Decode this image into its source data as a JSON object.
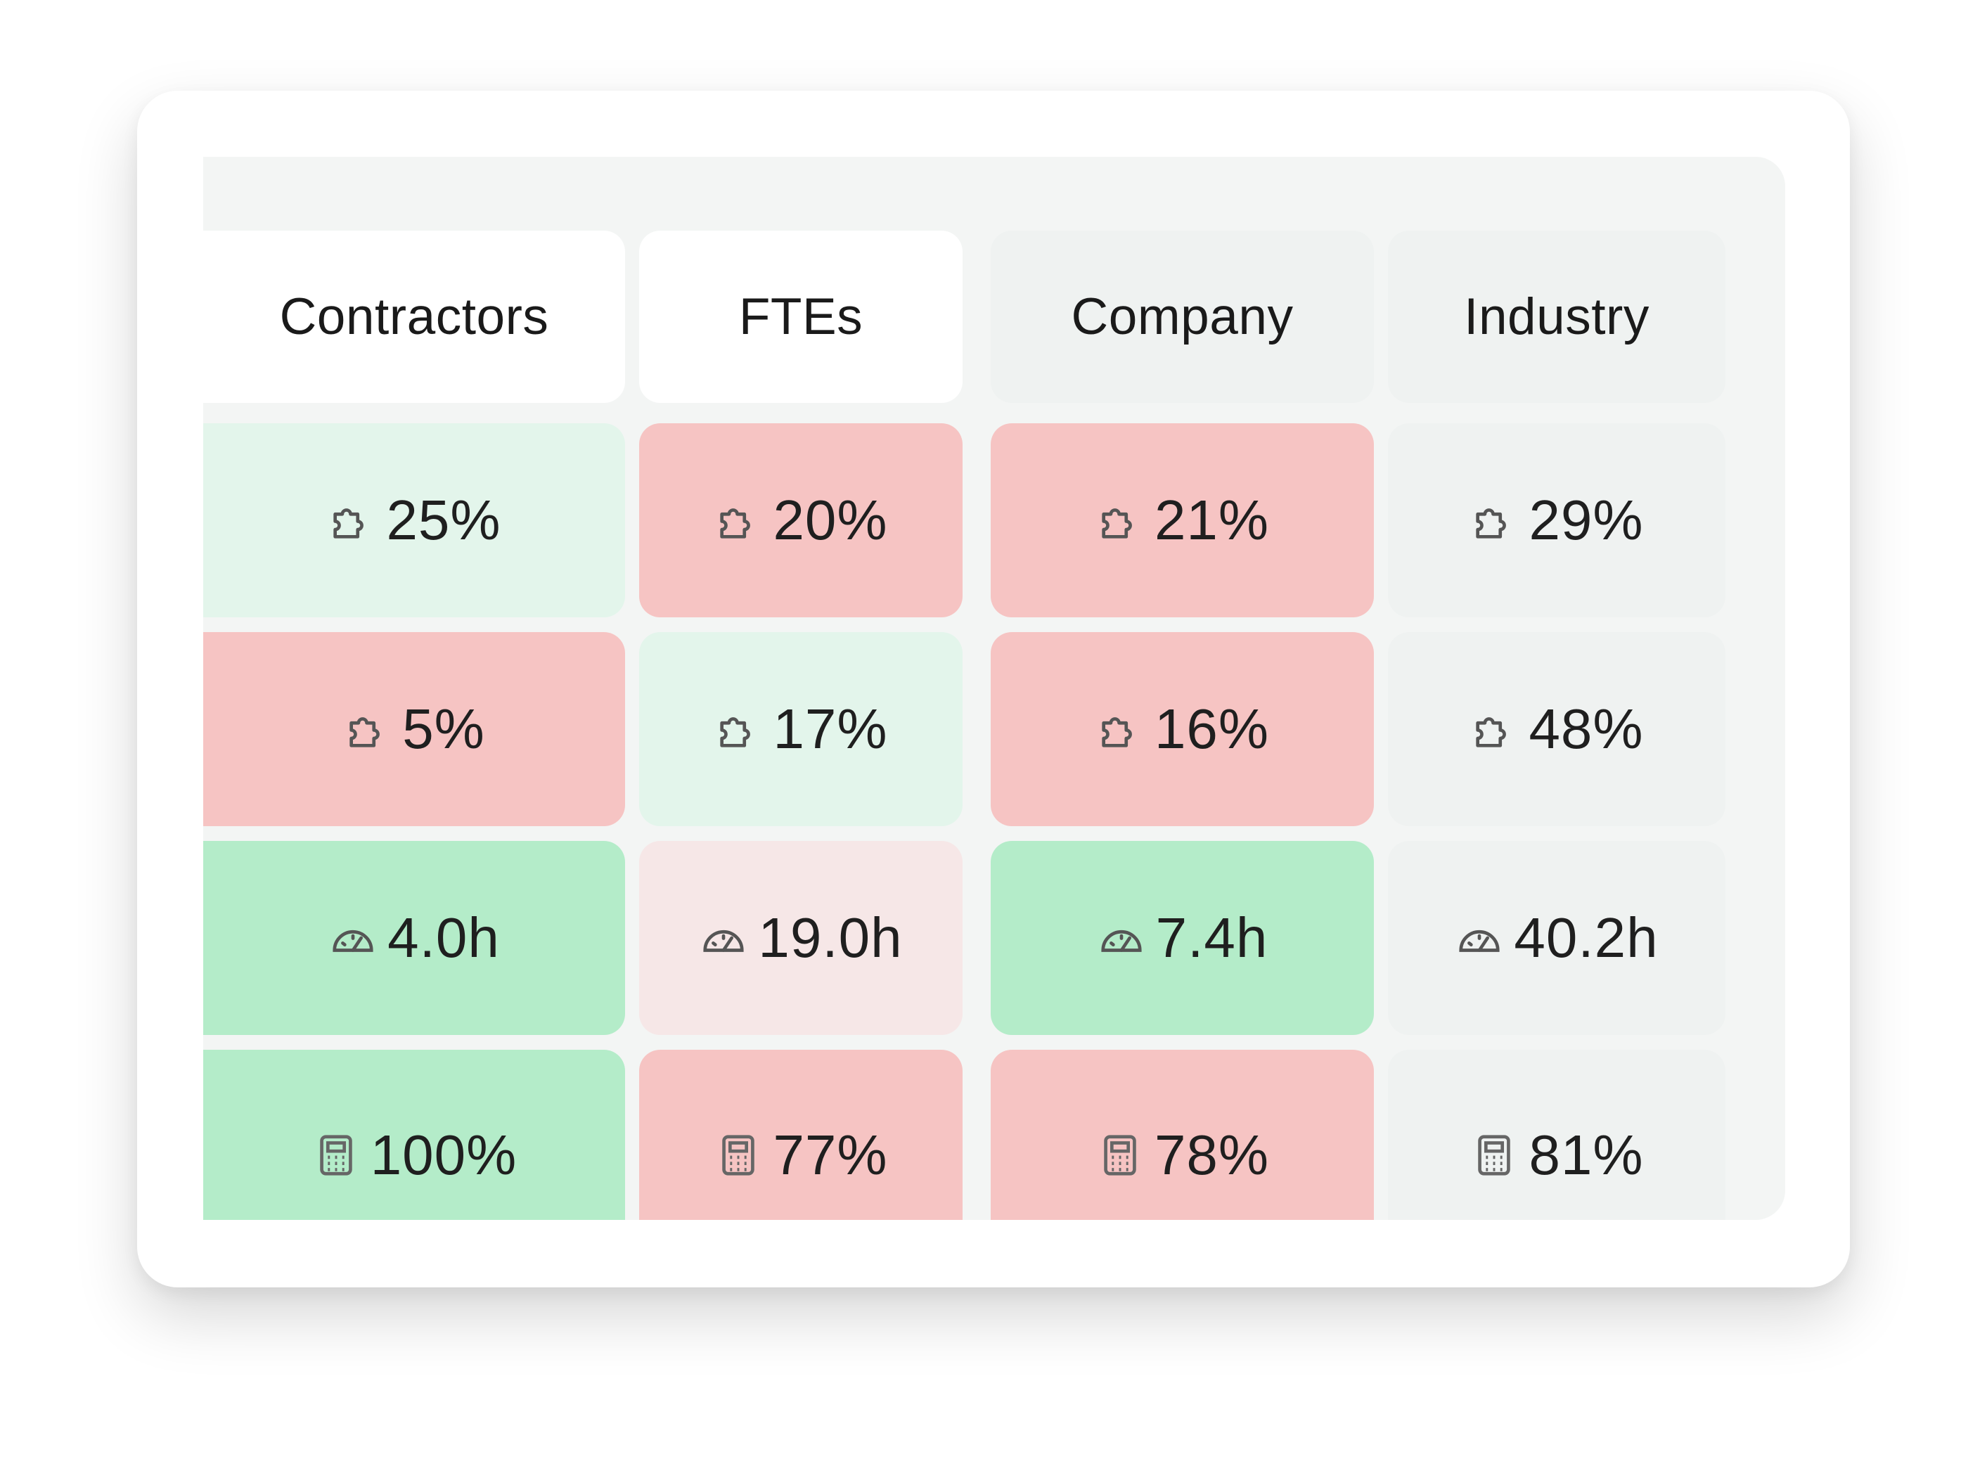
{
  "colors": {
    "green_light": "#e3f5eb",
    "green": "#b4ecc9",
    "red": "#f6c4c3",
    "pink_light": "#f6e7e7",
    "grey": "#eff2f1"
  },
  "columns": [
    {
      "header": "Contractors",
      "cells": [
        {
          "icon": "puzzle-icon",
          "value": "25%",
          "tone": "green_light"
        },
        {
          "icon": "puzzle-icon",
          "value": "5%",
          "tone": "red"
        },
        {
          "icon": "gauge-icon",
          "value": "4.0h",
          "tone": "green"
        },
        {
          "icon": "calculator-icon",
          "value": "100%",
          "tone": "green"
        }
      ]
    },
    {
      "header": "FTEs",
      "cells": [
        {
          "icon": "puzzle-icon",
          "value": "20%",
          "tone": "red"
        },
        {
          "icon": "puzzle-icon",
          "value": "17%",
          "tone": "green_light"
        },
        {
          "icon": "gauge-icon",
          "value": "19.0h",
          "tone": "pink_light"
        },
        {
          "icon": "calculator-icon",
          "value": "77%",
          "tone": "red"
        }
      ]
    },
    {
      "header": "Company",
      "cells": [
        {
          "icon": "puzzle-icon",
          "value": "21%",
          "tone": "red"
        },
        {
          "icon": "puzzle-icon",
          "value": "16%",
          "tone": "red"
        },
        {
          "icon": "gauge-icon",
          "value": "7.4h",
          "tone": "green"
        },
        {
          "icon": "calculator-icon",
          "value": "78%",
          "tone": "red"
        }
      ]
    },
    {
      "header": "Industry",
      "cells": [
        {
          "icon": "puzzle-icon",
          "value": "29%",
          "tone": "grey"
        },
        {
          "icon": "puzzle-icon",
          "value": "48%",
          "tone": "grey"
        },
        {
          "icon": "gauge-icon",
          "value": "40.2h",
          "tone": "grey"
        },
        {
          "icon": "calculator-icon",
          "value": "81%",
          "tone": "grey"
        }
      ]
    }
  ]
}
